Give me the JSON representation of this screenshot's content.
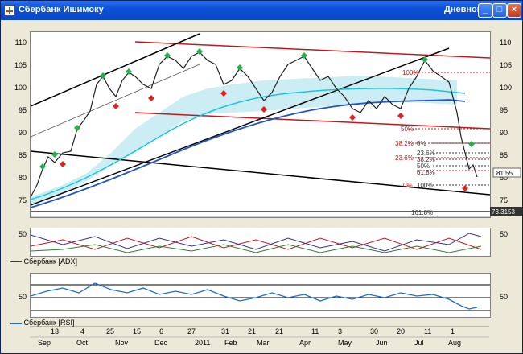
{
  "window": {
    "title": "Сбербанк Ишимоку",
    "mode": "Дневной",
    "minimize_icon": "minimize-icon",
    "maximize_icon": "maximize-icon",
    "close_icon": "close-icon"
  },
  "price_panel": {
    "y_ticks": [
      "110",
      "105",
      "100",
      "95",
      "90",
      "85",
      "80",
      "75"
    ],
    "price_label": "81.55",
    "low_label": "73.3153",
    "fib_upper": [
      "100%",
      "50%",
      "38.2%",
      "23.6%",
      "0%"
    ],
    "fib_lower": [
      "0%",
      "23.6%",
      "38.2%",
      "50%",
      "61.8%",
      "100%",
      "161.8%"
    ]
  },
  "adx_panel": {
    "y_tick": "50",
    "legend": "Сбербанк [ADX]"
  },
  "rsi_panel": {
    "y_tick": "50",
    "legend": "Сбербанк [RSI]"
  },
  "time_axis": {
    "day_ticks": [
      "13",
      "4",
      "25",
      "15",
      "6",
      "27",
      "31",
      "21",
      "21",
      "11",
      "3",
      "30",
      "20",
      "11",
      "1"
    ],
    "month_labels": [
      "Sep",
      "Oct",
      "Nov",
      "Dec",
      "2011",
      "Feb",
      "Mar",
      "Apr",
      "May",
      "Jun",
      "Jul",
      "Aug"
    ]
  },
  "colors": {
    "price_up": "#2e7d32",
    "price_down": "#c62828",
    "channel_red": "#c2181d",
    "trend_black": "#000000",
    "ma_blue": "#2256c8",
    "ma_cyan": "#19c7de",
    "cloud": "#8fd8e6",
    "adx_line": "#30309a",
    "rsi_line": "#1e6fd0"
  }
}
